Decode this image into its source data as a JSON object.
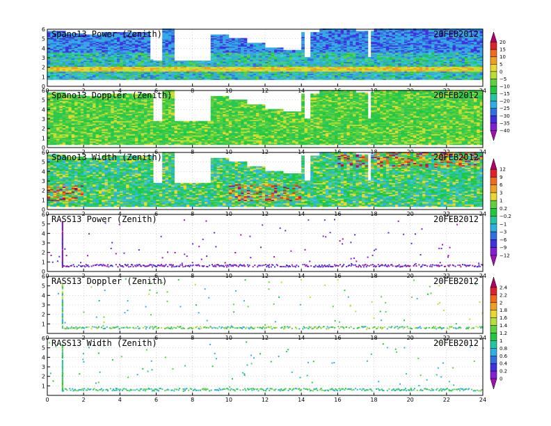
{
  "chart_data": [
    {
      "type": "heatmap",
      "title": "Spano13 Power (Zenith)",
      "date": "20FEB2012",
      "xlim": [
        0,
        24
      ],
      "ylim": [
        0,
        6
      ],
      "xticks": [
        "0",
        "2",
        "4",
        "6",
        "8",
        "10",
        "12",
        "14",
        "16",
        "18",
        "20",
        "22",
        "24"
      ],
      "yticks": [
        "0",
        "1",
        "2",
        "3",
        "4",
        "5",
        "6"
      ],
      "colorbar_group": "A",
      "data_top_km": [
        [
          0,
          0.7,
          5.8
        ],
        [
          1,
          0.7,
          5.5
        ],
        [
          2,
          0.7,
          5.4
        ],
        [
          3,
          0.7,
          5.6
        ],
        [
          4,
          0.7,
          5.6
        ],
        [
          5,
          0.7,
          5.6
        ],
        [
          6,
          0.7,
          6.0
        ],
        [
          7,
          0.7,
          2.7
        ],
        [
          8,
          0.7,
          2.7
        ],
        [
          9,
          0.7,
          5.4
        ],
        [
          10,
          0.7,
          5.0
        ],
        [
          11,
          0.7,
          4.5
        ],
        [
          12,
          0.7,
          4.0
        ],
        [
          13,
          0.7,
          3.8
        ],
        [
          14,
          0.7,
          5.6
        ],
        [
          15,
          0.7,
          6.0
        ],
        [
          16,
          0.7,
          6.0
        ],
        [
          17,
          0.7,
          5.8
        ],
        [
          18,
          0.7,
          6.0
        ],
        [
          19,
          0.7,
          6.0
        ],
        [
          20,
          0.7,
          6.0
        ],
        [
          21,
          0.7,
          6.0
        ],
        [
          22,
          0.7,
          6.0
        ],
        [
          23,
          0.7,
          6.0
        ]
      ],
      "dominant_levels": "20 to -40 dB; bright band near 1.7 km"
    },
    {
      "type": "heatmap",
      "title": "Spano13 Doppler (Zenith)",
      "date": "20FEB2012",
      "xlim": [
        0,
        24
      ],
      "ylim": [
        0,
        6
      ],
      "xticks": [
        "0",
        "2",
        "4",
        "6",
        "8",
        "10",
        "12",
        "14",
        "16",
        "18",
        "20",
        "22",
        "24"
      ],
      "yticks": [
        "0",
        "1",
        "2",
        "3",
        "4",
        "5",
        "6"
      ],
      "colorbar_group": "A",
      "data_top_km": [
        [
          0,
          0.3,
          5.8
        ],
        [
          1,
          0.3,
          5.5
        ],
        [
          2,
          0.3,
          5.4
        ],
        [
          3,
          0.3,
          5.6
        ],
        [
          4,
          0.3,
          5.6
        ],
        [
          5,
          0.3,
          5.6
        ],
        [
          6,
          0.3,
          6.0
        ],
        [
          7,
          0.3,
          2.7
        ],
        [
          8,
          0.3,
          2.7
        ],
        [
          9,
          0.3,
          5.4
        ],
        [
          10,
          0.3,
          5.0
        ],
        [
          11,
          0.3,
          4.5
        ],
        [
          12,
          0.3,
          4.0
        ],
        [
          13,
          0.3,
          3.8
        ],
        [
          14,
          0.3,
          5.6
        ],
        [
          15,
          0.3,
          6.0
        ],
        [
          16,
          0.3,
          6.0
        ],
        [
          17,
          0.3,
          5.8
        ],
        [
          18,
          0.3,
          6.0
        ],
        [
          19,
          0.3,
          6.0
        ],
        [
          20,
          0.3,
          6.0
        ],
        [
          21,
          0.3,
          6.0
        ],
        [
          22,
          0.3,
          6.0
        ],
        [
          23,
          0.3,
          6.0
        ]
      ]
    },
    {
      "type": "heatmap",
      "title": "Spano13 Width (Zenith)",
      "date": "20FEB2012",
      "xlim": [
        0,
        24
      ],
      "ylim": [
        0,
        6
      ],
      "xticks": [
        "0",
        "2",
        "4",
        "6",
        "8",
        "10",
        "12",
        "14",
        "16",
        "18",
        "20",
        "22",
        "24"
      ],
      "yticks": [
        "0",
        "1",
        "2",
        "3",
        "4",
        "5",
        "6"
      ],
      "colorbar_group": "B",
      "data_top_km": [
        [
          0,
          0.3,
          5.8
        ],
        [
          1,
          0.3,
          5.5
        ],
        [
          2,
          0.3,
          5.4
        ],
        [
          3,
          0.3,
          5.6
        ],
        [
          4,
          0.3,
          5.6
        ],
        [
          5,
          0.3,
          5.6
        ],
        [
          6,
          0.3,
          6.0
        ],
        [
          7,
          0.3,
          2.7
        ],
        [
          8,
          0.3,
          2.7
        ],
        [
          9,
          0.3,
          5.4
        ],
        [
          10,
          0.3,
          5.0
        ],
        [
          11,
          0.3,
          4.5
        ],
        [
          12,
          0.3,
          4.0
        ],
        [
          13,
          0.3,
          3.8
        ],
        [
          14,
          0.3,
          5.6
        ],
        [
          15,
          0.3,
          6.0
        ],
        [
          16,
          0.3,
          6.0
        ],
        [
          17,
          0.3,
          5.8
        ],
        [
          18,
          0.3,
          6.0
        ],
        [
          19,
          0.3,
          6.0
        ],
        [
          20,
          0.3,
          6.0
        ],
        [
          21,
          0.3,
          6.0
        ],
        [
          22,
          0.3,
          6.0
        ],
        [
          23,
          0.3,
          6.0
        ]
      ]
    },
    {
      "type": "scatter",
      "title": "RASS13 Power (Zenith)",
      "date": "20FEB2012",
      "xlim": [
        0,
        24
      ],
      "ylim": [
        0,
        6
      ],
      "xticks": [
        "0",
        "2",
        "4",
        "6",
        "8",
        "10",
        "12",
        "14",
        "16",
        "18",
        "20",
        "22",
        "24"
      ],
      "yticks": [
        "0",
        "1",
        "2",
        "3",
        "4",
        "5",
        "6"
      ],
      "colorbar_group": "B",
      "baseline_km": 0.55
    },
    {
      "type": "scatter",
      "title": "RASS13 Doppler (Zenith)",
      "date": "20FEB2012",
      "xlim": [
        0,
        24
      ],
      "ylim": [
        0,
        6
      ],
      "xticks": [
        "0",
        "2",
        "4",
        "6",
        "8",
        "10",
        "12",
        "14",
        "16",
        "18",
        "20",
        "22",
        "24"
      ],
      "yticks": [
        "1",
        "2",
        "3",
        "4",
        "5",
        "6"
      ],
      "colorbar_group": "C",
      "baseline_km": 0.55
    },
    {
      "type": "scatter",
      "title": "RASS13 Width (Zenith)",
      "date": "20FEB2012",
      "xlim": [
        0,
        24
      ],
      "ylim": [
        0,
        6
      ],
      "xticks": [
        "0",
        "2",
        "4",
        "6",
        "8",
        "10",
        "12",
        "14",
        "16",
        "18",
        "20",
        "22",
        "24"
      ],
      "yticks": [
        "1",
        "2",
        "3",
        "4",
        "5",
        "6"
      ],
      "colorbar_group": "C",
      "baseline_km": 0.55
    }
  ],
  "colorbars": {
    "A": {
      "labels": [
        "20",
        "15",
        "10",
        "5",
        "0",
        "−5",
        "−10",
        "−15",
        "−20",
        "−25",
        "−30",
        "−35",
        "−40"
      ],
      "colors": [
        "#b0006a",
        "#e0202a",
        "#f06a1a",
        "#f0a020",
        "#e8d830",
        "#b8e030",
        "#60d040",
        "#20c840",
        "#20c8a0",
        "#30b0e0",
        "#3070e0",
        "#4030e0",
        "#8020d0",
        "#a010b0"
      ]
    },
    "B": {
      "labels": [
        "12",
        "9",
        "6",
        "3",
        "1",
        "0.2",
        "−0.2",
        "−1",
        "−3",
        "−6",
        "−9",
        "−12"
      ],
      "colors": [
        "#b0006a",
        "#e0202a",
        "#f06a1a",
        "#f0a020",
        "#e8d830",
        "#60d040",
        "#20c840",
        "#20c8a0",
        "#30b0e0",
        "#3070e0",
        "#4030e0",
        "#8020d0",
        "#a010b0"
      ]
    },
    "C": {
      "labels": [
        "2.4",
        "2.2",
        "2",
        "1.8",
        "1.6",
        "1.4",
        "1.2",
        "1",
        "0.8",
        "0.6",
        "0.4",
        "0.2",
        "0"
      ],
      "colors": [
        "#b0006a",
        "#e0202a",
        "#f06a1a",
        "#f0a020",
        "#e8d830",
        "#b8e030",
        "#60d040",
        "#20c840",
        "#20c8a0",
        "#30b0e0",
        "#3070e0",
        "#4030e0",
        "#8020d0",
        "#a010b0"
      ]
    }
  }
}
